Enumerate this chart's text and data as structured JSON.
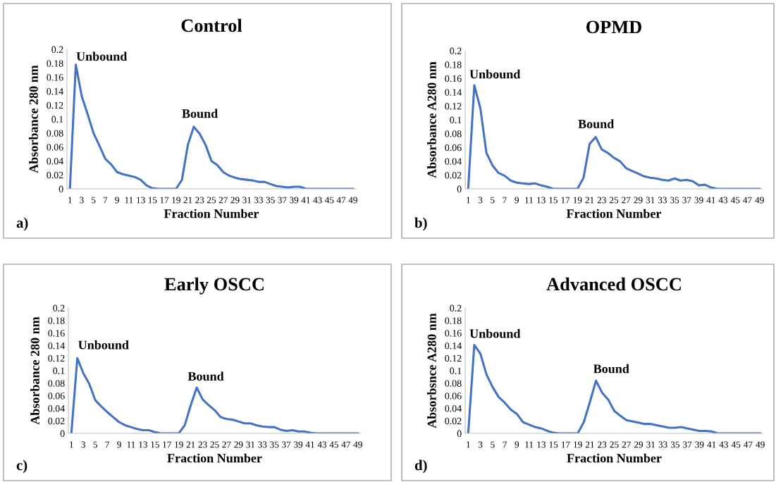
{
  "chart_data": [
    {
      "type": "line",
      "title": "Control",
      "xlabel": "Fraction Number",
      "ylabel": "Absorbance 280 nm",
      "categories": [
        "1",
        null,
        "3",
        null,
        "5",
        null,
        "7",
        null,
        "9",
        null,
        "11",
        null,
        "13",
        null,
        "15",
        null,
        "17",
        null,
        "19",
        null,
        "21",
        null,
        "23",
        null,
        "25",
        null,
        "27",
        null,
        "29",
        null,
        "31",
        null,
        "33",
        null,
        "35",
        null,
        "37",
        null,
        "39",
        null,
        "41",
        null,
        "43",
        null,
        "45",
        null,
        "47",
        null,
        "49"
      ],
      "series": [
        {
          "color": "#4472c4",
          "values": [
            0,
            0.178,
            0.133,
            0.107,
            0.08,
            0.062,
            0.043,
            0.035,
            0.024,
            0.021,
            0.019,
            0.017,
            0.013,
            0.005,
            0.001,
            0,
            0,
            0,
            0,
            0.013,
            0.063,
            0.089,
            0.079,
            0.063,
            0.04,
            0.034,
            0.024,
            0.019,
            0.016,
            0.014,
            0.013,
            0.012,
            0.01,
            0.01,
            0.007,
            0.004,
            0.003,
            0.002,
            0.003,
            0.003,
            0,
            0,
            0,
            0,
            0,
            0,
            0,
            0,
            0
          ]
        }
      ],
      "ylim": [
        0,
        0.2
      ],
      "yticks": [
        0,
        0.02,
        0.04,
        0.06,
        0.08,
        0.1,
        0.12,
        0.14,
        0.16,
        0.18,
        0.2
      ],
      "grid": false,
      "legend": false,
      "annotations": [
        "Unbound",
        "Bound",
        "a)"
      ]
    },
    {
      "type": "line",
      "title": "OPMD",
      "xlabel": "Fraction Number",
      "ylabel": "Absorbance A280 nm",
      "categories": [
        "1",
        null,
        "3",
        null,
        "5",
        null,
        "7",
        null,
        "9",
        null,
        "11",
        null,
        "13",
        null,
        "15",
        null,
        "17",
        null,
        "19",
        null,
        "21",
        null,
        "23",
        null,
        "25",
        null,
        "27",
        null,
        "29",
        null,
        "31",
        null,
        "33",
        null,
        "35",
        null,
        "37",
        null,
        "39",
        null,
        "41",
        null,
        "43",
        null,
        "45",
        null,
        "47",
        null,
        "49"
      ],
      "series": [
        {
          "color": "#4472c4",
          "values": [
            0,
            0.15,
            0.117,
            0.052,
            0.034,
            0.023,
            0.019,
            0.012,
            0.009,
            0.008,
            0.007,
            0.008,
            0.005,
            0.003,
            0,
            0,
            0,
            0,
            0,
            0.016,
            0.065,
            0.075,
            0.057,
            0.052,
            0.045,
            0.04,
            0.03,
            0.026,
            0.022,
            0.018,
            0.016,
            0.015,
            0.013,
            0.012,
            0.015,
            0.012,
            0.013,
            0.011,
            0.005,
            0.006,
            0.002,
            0,
            0,
            0,
            0,
            0,
            0,
            0,
            0
          ]
        }
      ],
      "ylim": [
        0,
        0.2
      ],
      "yticks": [
        0,
        0.02,
        0.04,
        0.06,
        0.08,
        0.1,
        0.12,
        0.14,
        0.16,
        0.18,
        0.2
      ],
      "grid": false,
      "legend": false,
      "annotations": [
        "Unbound",
        "Bound",
        "b)"
      ]
    },
    {
      "type": "line",
      "title": "Early OSCC",
      "xlabel": "Fraction Number",
      "ylabel": "Absorbance 280 nm",
      "categories": [
        "1",
        null,
        "3",
        null,
        "5",
        null,
        "7",
        null,
        "9",
        null,
        "11",
        null,
        "13",
        null,
        "15",
        null,
        "17",
        null,
        "19",
        null,
        "21",
        null,
        "23",
        null,
        "25",
        null,
        "27",
        null,
        "29",
        null,
        "31",
        null,
        "33",
        null,
        "35",
        null,
        "37",
        null,
        "39",
        null,
        "41",
        null,
        "43",
        null,
        "45",
        null,
        "47",
        null,
        "49"
      ],
      "series": [
        {
          "color": "#4472c4",
          "values": [
            0,
            0.12,
            0.096,
            0.079,
            0.053,
            0.043,
            0.034,
            0.026,
            0.018,
            0.013,
            0.01,
            0.007,
            0.005,
            0.005,
            0.002,
            0,
            0,
            0,
            0,
            0.013,
            0.045,
            0.073,
            0.054,
            0.045,
            0.037,
            0.026,
            0.023,
            0.022,
            0.019,
            0.016,
            0.016,
            0.013,
            0.011,
            0.01,
            0.01,
            0.006,
            0.004,
            0.005,
            0.003,
            0.003,
            0.001,
            0,
            0,
            0,
            0,
            0,
            0,
            0,
            0
          ]
        }
      ],
      "ylim": [
        0,
        0.2
      ],
      "yticks": [
        0,
        0.02,
        0.04,
        0.06,
        0.08,
        0.1,
        0.12,
        0.14,
        0.16,
        0.18,
        0.2
      ],
      "grid": false,
      "legend": false,
      "annotations": [
        "Unbound",
        "Bound",
        "c)"
      ]
    },
    {
      "type": "line",
      "title": "Advanced OSCC",
      "xlabel": "Fraction Number",
      "ylabel": "Absorbsnce A280 nm",
      "categories": [
        "1",
        null,
        "3",
        null,
        "5",
        null,
        "7",
        null,
        "9",
        null,
        "11",
        null,
        "13",
        null,
        "15",
        null,
        "17",
        null,
        "19",
        null,
        "21",
        null,
        "23",
        null,
        "25",
        null,
        "27",
        null,
        "29",
        null,
        "31",
        null,
        "33",
        null,
        "35",
        null,
        "37",
        null,
        "39",
        null,
        "41",
        null,
        "43",
        null,
        "45",
        null,
        "47",
        null,
        "49"
      ],
      "series": [
        {
          "color": "#4472c4",
          "values": [
            0,
            0.141,
            0.127,
            0.094,
            0.074,
            0.058,
            0.049,
            0.038,
            0.031,
            0.018,
            0.014,
            0.01,
            0.008,
            0.004,
            0.001,
            0,
            0,
            0,
            0,
            0.018,
            0.05,
            0.084,
            0.065,
            0.054,
            0.036,
            0.028,
            0.021,
            0.019,
            0.017,
            0.015,
            0.015,
            0.013,
            0.011,
            0.009,
            0.009,
            0.01,
            0.008,
            0.006,
            0.004,
            0.004,
            0.003,
            0,
            0,
            0,
            0,
            0,
            0,
            0,
            0
          ]
        }
      ],
      "ylim": [
        0,
        0.2
      ],
      "yticks": [
        0,
        0.02,
        0.04,
        0.06,
        0.08,
        0.1,
        0.12,
        0.14,
        0.16,
        0.18,
        0.2
      ],
      "grid": false,
      "legend": false,
      "annotations": [
        "Unbound",
        "Bound",
        "d)"
      ]
    }
  ]
}
